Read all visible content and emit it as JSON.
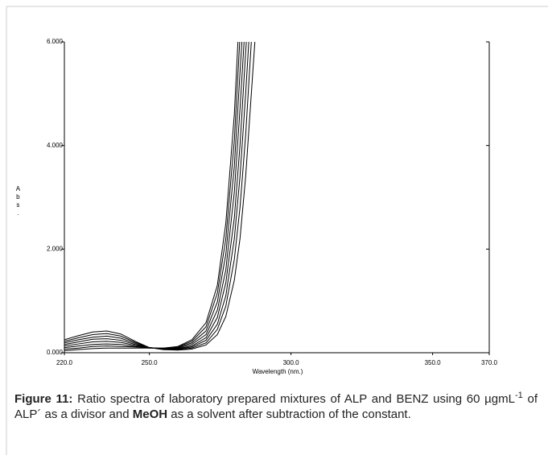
{
  "chart_data": {
    "type": "line",
    "xlabel": "Wavelength (nm.)",
    "ylabel": "Abs.",
    "x": [
      220,
      225,
      230,
      235,
      240,
      245,
      250,
      255,
      260,
      265,
      270,
      274,
      277,
      280,
      282,
      284,
      286,
      288,
      290
    ],
    "series": [
      {
        "color": "#000000",
        "values": [
          0.25,
          0.33,
          0.4,
          0.42,
          0.36,
          0.22,
          0.1,
          0.06,
          0.05,
          0.07,
          0.15,
          0.35,
          0.7,
          1.4,
          2.2,
          3.4,
          5.0,
          6.6,
          null
        ]
      },
      {
        "color": "#000000",
        "values": [
          0.22,
          0.29,
          0.35,
          0.37,
          0.32,
          0.2,
          0.1,
          0.06,
          0.06,
          0.09,
          0.19,
          0.45,
          0.9,
          1.8,
          2.8,
          4.2,
          6.0,
          null,
          null
        ]
      },
      {
        "color": "#000000",
        "values": [
          0.19,
          0.25,
          0.3,
          0.32,
          0.28,
          0.18,
          0.1,
          0.07,
          0.07,
          0.11,
          0.24,
          0.55,
          1.1,
          2.2,
          3.4,
          5.0,
          6.8,
          null,
          null
        ]
      },
      {
        "color": "#000000",
        "values": [
          0.16,
          0.21,
          0.26,
          0.27,
          0.24,
          0.16,
          0.1,
          0.07,
          0.08,
          0.13,
          0.29,
          0.68,
          1.35,
          2.6,
          4.0,
          5.8,
          7.5,
          null,
          null
        ]
      },
      {
        "color": "#000000",
        "values": [
          0.13,
          0.17,
          0.21,
          0.22,
          0.2,
          0.14,
          0.1,
          0.08,
          0.09,
          0.16,
          0.35,
          0.82,
          1.6,
          3.1,
          4.7,
          6.5,
          null,
          null,
          null
        ]
      },
      {
        "color": "#000000",
        "values": [
          0.1,
          0.13,
          0.16,
          0.17,
          0.16,
          0.12,
          0.1,
          0.08,
          0.1,
          0.19,
          0.42,
          0.98,
          1.9,
          3.6,
          5.4,
          7.2,
          null,
          null,
          null
        ]
      },
      {
        "color": "#000000",
        "values": [
          0.07,
          0.09,
          0.12,
          0.13,
          0.12,
          0.11,
          0.09,
          0.09,
          0.11,
          0.22,
          0.5,
          1.15,
          2.2,
          4.1,
          6.1,
          null,
          null,
          null,
          null
        ]
      },
      {
        "color": "#000000",
        "values": [
          0.04,
          0.06,
          0.08,
          0.09,
          0.09,
          0.09,
          0.09,
          0.09,
          0.12,
          0.25,
          0.58,
          1.3,
          2.5,
          4.6,
          6.8,
          null,
          null,
          null,
          null
        ]
      }
    ],
    "xlim": [
      220,
      370
    ],
    "ylim": [
      0,
      6
    ],
    "xticks": [
      {
        "value": 220,
        "label": "220.0"
      },
      {
        "value": 250,
        "label": "250.0"
      },
      {
        "value": 300,
        "label": "300.0"
      },
      {
        "value": 350,
        "label": "350.0"
      },
      {
        "value": 370,
        "label": "370.0"
      }
    ],
    "yticks": [
      {
        "value": 0,
        "label": "0.000"
      },
      {
        "value": 2,
        "label": "2.000"
      },
      {
        "value": 4,
        "label": "4.000"
      },
      {
        "value": 6,
        "label": "6.000"
      }
    ],
    "grid": false
  },
  "caption": {
    "label": "Figure 11:",
    "text_1": " Ratio spectra of laboratory prepared mixtures of ALP and BENZ using 60 µgmL",
    "superscript": "-1",
    "text_2": " of ALP´ as a divisor and ",
    "bold": "MeOH",
    "text_3": " as a solvent after subtraction of the constant."
  }
}
